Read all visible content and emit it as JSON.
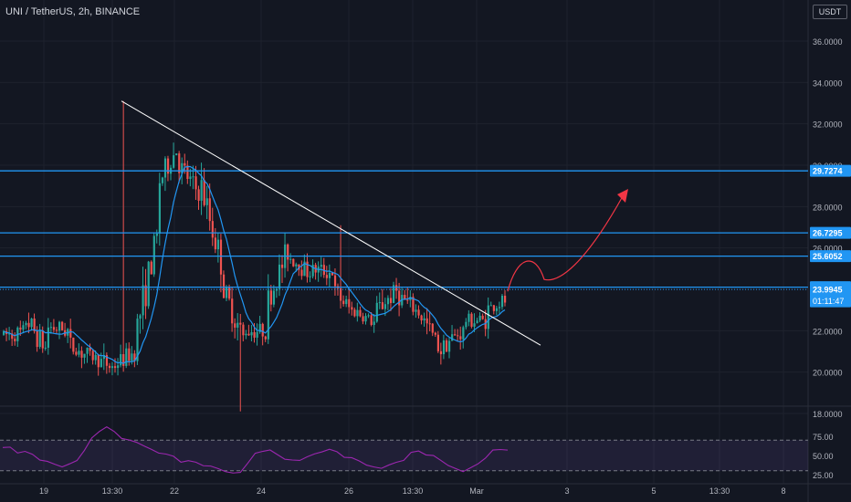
{
  "header": {
    "title": "UNI / TetherUS, 2h, BINANCE",
    "currency": "USDT"
  },
  "colors": {
    "background": "#131722",
    "up_candle": "#26a69a",
    "down_candle": "#ef5350",
    "horizontal_level": "#2196f3",
    "trendline": "#ffffff",
    "moving_average": "#2196f3",
    "projection_arrow": "#f23645",
    "rsi_line": "#9c27b0",
    "rsi_band": "#7e57c2"
  },
  "chart_data": [
    {
      "type": "candlestick",
      "title": "UNI / TetherUS, 2h, BINANCE",
      "x_tick_labels": [
        "19",
        "13:30",
        "22",
        "24",
        "26",
        "13:30",
        "Mar",
        "3",
        "5",
        "13:30",
        "8"
      ],
      "y_tick_labels": [
        "36.0000",
        "34.0000",
        "32.0000",
        "30.0000",
        "28.0000",
        "26.0000",
        "22.0000",
        "20.0000",
        "18.0000"
      ],
      "ylim": [
        17.0,
        36.8
      ],
      "grid": true,
      "anchor_prices": [
        [
          21.8,
          21.9
        ],
        [
          22.6,
          21.0
        ],
        [
          22.2,
          22.0
        ],
        [
          21.3,
          20.7
        ],
        [
          20.8,
          20.2
        ],
        [
          20.3,
          21.0
        ],
        [
          21.8,
          26.5
        ],
        [
          29.0,
          31.0
        ],
        [
          30.0,
          28.5
        ],
        [
          29.0,
          25.0
        ],
        [
          24.0,
          21.5
        ],
        [
          22.0,
          22.0
        ],
        [
          23.2,
          26.0
        ],
        [
          25.6,
          24.8
        ],
        [
          25.0,
          24.8
        ],
        [
          24.0,
          22.8
        ],
        [
          23.0,
          22.3
        ],
        [
          23.0,
          24.0
        ],
        [
          23.7,
          22.8
        ],
        [
          22.8,
          21.0
        ],
        [
          21.3,
          22.0
        ],
        [
          22.5,
          22.5
        ],
        [
          23.0,
          23.5
        ]
      ],
      "price_levels": [
        {
          "label": "29.7274",
          "value": 29.7274
        },
        {
          "label": "26.7295",
          "value": 26.7295
        },
        {
          "label": "25.6052",
          "value": 25.6052
        },
        {
          "label": "24.1062",
          "value": 24.1062
        },
        {
          "label": "23.9945",
          "value": 23.9945
        }
      ],
      "last_price": {
        "label": "23.9945",
        "countdown": "01:11:47"
      },
      "trendline": {
        "from_price": 33.1,
        "to_price": 21.3
      },
      "projection_target": 28.5
    },
    {
      "type": "line",
      "title": "",
      "y_tick_labels": [
        "75.00",
        "50.00",
        "25.00"
      ],
      "ylim": [
        22,
        88
      ],
      "band": [
        30,
        70
      ],
      "series": [
        {
          "values": [
            59,
            60,
            56,
            54,
            50,
            46,
            42,
            38,
            35,
            39,
            45,
            55,
            72,
            84,
            86,
            80,
            74,
            70,
            67,
            62,
            58,
            55,
            50,
            48,
            44,
            42,
            40,
            38,
            36,
            33,
            28,
            27,
            30,
            38,
            52,
            58,
            56,
            50,
            46,
            44,
            44,
            47,
            52,
            57,
            56,
            54,
            50,
            46,
            42,
            38,
            35,
            34,
            36,
            41,
            46,
            52,
            55,
            53,
            49,
            43,
            37,
            33,
            30,
            32,
            39,
            49,
            55,
            57,
            59
          ]
        }
      ]
    }
  ]
}
